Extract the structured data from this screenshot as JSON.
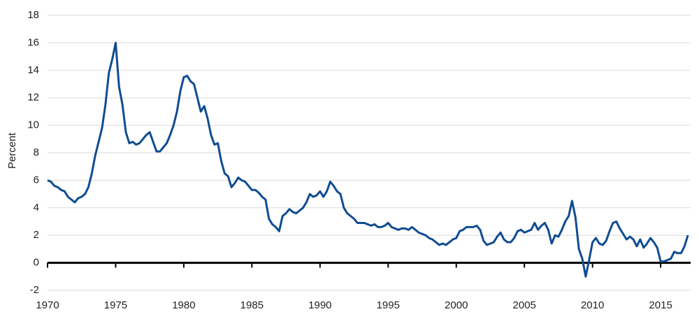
{
  "chart_data": {
    "type": "line",
    "y_label": "Percent",
    "xlim": [
      1970,
      2017.2
    ],
    "xticks": [
      1970,
      1975,
      1980,
      1985,
      1990,
      1995,
      2000,
      2005,
      2010,
      2015
    ],
    "ylim": [
      -2,
      18
    ],
    "yticks": [
      -2,
      0,
      2,
      4,
      6,
      8,
      10,
      12,
      14,
      16,
      18
    ],
    "grid": true,
    "x": [
      1970,
      1970.25,
      1970.5,
      1970.75,
      1971,
      1971.25,
      1971.5,
      1971.75,
      1972,
      1972.25,
      1972.5,
      1972.75,
      1973,
      1973.25,
      1973.5,
      1973.75,
      1974,
      1974.25,
      1974.5,
      1974.75,
      1975,
      1975.25,
      1975.5,
      1975.75,
      1976,
      1976.25,
      1976.5,
      1976.75,
      1977,
      1977.25,
      1977.5,
      1977.75,
      1978,
      1978.25,
      1978.5,
      1978.75,
      1979,
      1979.25,
      1979.5,
      1979.75,
      1980,
      1980.25,
      1980.5,
      1980.75,
      1981,
      1981.25,
      1981.5,
      1981.75,
      1982,
      1982.25,
      1982.5,
      1982.75,
      1983,
      1983.25,
      1983.5,
      1983.75,
      1984,
      1984.25,
      1984.5,
      1984.75,
      1985,
      1985.25,
      1985.5,
      1985.75,
      1986,
      1986.25,
      1986.5,
      1986.75,
      1987,
      1987.25,
      1987.5,
      1987.75,
      1988,
      1988.25,
      1988.5,
      1988.75,
      1989,
      1989.25,
      1989.5,
      1989.75,
      1990,
      1990.25,
      1990.5,
      1990.75,
      1991,
      1991.25,
      1991.5,
      1991.75,
      1992,
      1992.25,
      1992.5,
      1992.75,
      1993,
      1993.25,
      1993.5,
      1993.75,
      1994,
      1994.25,
      1994.5,
      1994.75,
      1995,
      1995.25,
      1995.5,
      1995.75,
      1996,
      1996.25,
      1996.5,
      1996.75,
      1997,
      1997.25,
      1997.5,
      1997.75,
      1998,
      1998.25,
      1998.5,
      1998.75,
      1999,
      1999.25,
      1999.5,
      1999.75,
      2000,
      2000.25,
      2000.5,
      2000.75,
      2001,
      2001.25,
      2001.5,
      2001.75,
      2002,
      2002.25,
      2002.5,
      2002.75,
      2003,
      2003.25,
      2003.5,
      2003.75,
      2004,
      2004.25,
      2004.5,
      2004.75,
      2005,
      2005.25,
      2005.5,
      2005.75,
      2006,
      2006.25,
      2006.5,
      2006.75,
      2007,
      2007.25,
      2007.5,
      2007.75,
      2008,
      2008.25,
      2008.5,
      2008.75,
      2009,
      2009.25,
      2009.5,
      2009.75,
      2010,
      2010.25,
      2010.5,
      2010.75,
      2011,
      2011.25,
      2011.5,
      2011.75,
      2012,
      2012.25,
      2012.5,
      2012.75,
      2013,
      2013.25,
      2013.5,
      2013.75,
      2014,
      2014.25,
      2014.5,
      2014.75,
      2015,
      2015.25,
      2015.5,
      2015.75,
      2016,
      2016.25,
      2016.5,
      2016.75,
      2017
    ],
    "series": [
      {
        "color": "#0f4c92",
        "values": [
          6.0,
          5.9,
          5.6,
          5.5,
          5.3,
          5.2,
          4.8,
          4.6,
          4.4,
          4.7,
          4.8,
          5.0,
          5.5,
          6.5,
          7.8,
          8.8,
          9.8,
          11.5,
          13.8,
          14.8,
          16.0,
          12.8,
          11.5,
          9.5,
          8.7,
          8.8,
          8.6,
          8.7,
          9.0,
          9.3,
          9.5,
          8.8,
          8.1,
          8.1,
          8.4,
          8.7,
          9.3,
          10.0,
          11.0,
          12.5,
          13.5,
          13.6,
          13.2,
          13.0,
          12.0,
          11.0,
          11.4,
          10.5,
          9.3,
          8.6,
          8.7,
          7.4,
          6.5,
          6.3,
          5.5,
          5.8,
          6.2,
          6.0,
          5.9,
          5.6,
          5.3,
          5.3,
          5.1,
          4.8,
          4.6,
          3.2,
          2.8,
          2.6,
          2.3,
          3.4,
          3.6,
          3.9,
          3.7,
          3.6,
          3.8,
          4.0,
          4.4,
          5.0,
          4.8,
          4.9,
          5.2,
          4.8,
          5.2,
          5.9,
          5.6,
          5.2,
          5.0,
          4.0,
          3.6,
          3.4,
          3.2,
          2.9,
          2.9,
          2.9,
          2.8,
          2.7,
          2.8,
          2.6,
          2.6,
          2.7,
          2.9,
          2.6,
          2.5,
          2.4,
          2.5,
          2.5,
          2.4,
          2.6,
          2.4,
          2.2,
          2.1,
          2.0,
          1.8,
          1.7,
          1.5,
          1.3,
          1.4,
          1.3,
          1.5,
          1.7,
          1.8,
          2.3,
          2.4,
          2.6,
          2.6,
          2.6,
          2.7,
          2.4,
          1.6,
          1.3,
          1.4,
          1.5,
          1.9,
          2.2,
          1.7,
          1.5,
          1.5,
          1.8,
          2.3,
          2.4,
          2.2,
          2.3,
          2.4,
          2.9,
          2.4,
          2.7,
          2.9,
          2.4,
          1.4,
          2.0,
          1.9,
          2.4,
          3.0,
          3.4,
          4.5,
          3.3,
          1.0,
          0.3,
          -1.0,
          0.2,
          1.5,
          1.8,
          1.4,
          1.3,
          1.6,
          2.3,
          2.9,
          3.0,
          2.5,
          2.1,
          1.7,
          1.9,
          1.7,
          1.2,
          1.7,
          1.1,
          1.4,
          1.8,
          1.5,
          1.1,
          0.1,
          0.1,
          0.2,
          0.3,
          0.8,
          0.7,
          0.7,
          1.2,
          2.0
        ]
      }
    ]
  }
}
